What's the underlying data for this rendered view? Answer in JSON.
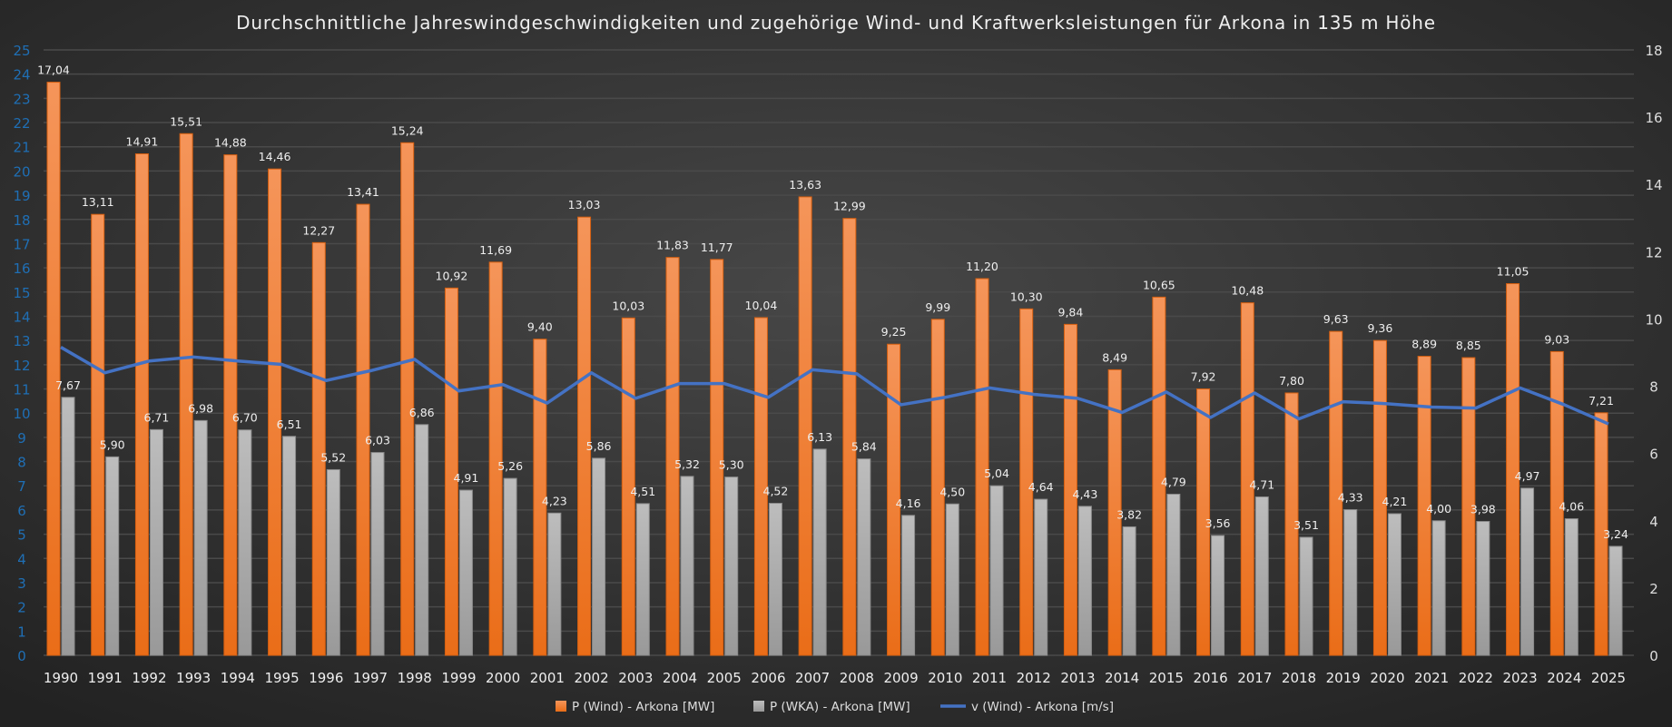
{
  "chart_data": {
    "type": "bar",
    "title": "Durchschnittliche Jahreswindgeschwindigkeiten und zugehörige Wind- und Kraftwerksleistungen für Arkona in 135 m Höhe",
    "categories": [
      "1990",
      "1991",
      "1992",
      "1993",
      "1994",
      "1995",
      "1996",
      "1997",
      "1998",
      "1999",
      "2000",
      "2001",
      "2002",
      "2003",
      "2004",
      "2005",
      "2006",
      "2007",
      "2008",
      "2009",
      "2010",
      "2011",
      "2012",
      "2013",
      "2014",
      "2015",
      "2016",
      "2017",
      "2018",
      "2019",
      "2020",
      "2021",
      "2022",
      "2023",
      "2024",
      "2025"
    ],
    "series": [
      {
        "name": "P (Wind) - Arkona [MW]",
        "type": "bar",
        "color": "#ed7d31",
        "values": [
          17.04,
          13.11,
          14.91,
          15.51,
          14.88,
          14.46,
          12.27,
          13.41,
          15.24,
          10.92,
          11.69,
          9.4,
          13.03,
          10.03,
          11.83,
          11.77,
          10.04,
          13.63,
          12.99,
          9.25,
          9.99,
          11.2,
          10.3,
          9.84,
          8.49,
          10.65,
          7.92,
          10.48,
          7.8,
          9.63,
          9.36,
          8.89,
          8.85,
          11.05,
          9.03,
          7.21
        ],
        "labels": [
          "17,04",
          "13,11",
          "14,91",
          "15,51",
          "14,88",
          "14,46",
          "12,27",
          "13,41",
          "15,24",
          "10,92",
          "11,69",
          "9,40",
          "13,03",
          "10,03",
          "11,83",
          "11,77",
          "10,04",
          "13,63",
          "12,99",
          "9,25",
          "9,99",
          "11,20",
          "10,30",
          "9,84",
          "8,49",
          "10,65",
          "7,92",
          "10,48",
          "7,80",
          "9,63",
          "9,36",
          "8,89",
          "8,85",
          "11,05",
          "9,03",
          "7,21"
        ]
      },
      {
        "name": "P (WKA) - Arkona [MW]",
        "type": "bar",
        "color": "#a5a5a5",
        "values": [
          7.67,
          5.9,
          6.71,
          6.98,
          6.7,
          6.51,
          5.52,
          6.03,
          6.86,
          4.91,
          5.26,
          4.23,
          5.86,
          4.51,
          5.32,
          5.3,
          4.52,
          6.13,
          5.84,
          4.16,
          4.5,
          5.04,
          4.64,
          4.43,
          3.82,
          4.79,
          3.56,
          4.71,
          3.51,
          4.33,
          4.21,
          4.0,
          3.98,
          4.97,
          4.06,
          3.24
        ],
        "labels": [
          "7,67",
          "5,90",
          "6,71",
          "6,98",
          "6,70",
          "6,51",
          "5,52",
          "6,03",
          "6,86",
          "4,91",
          "5,26",
          "4,23",
          "5,86",
          "4,51",
          "5,32",
          "5,30",
          "4,52",
          "6,13",
          "5,84",
          "4,16",
          "4,50",
          "5,04",
          "4,64",
          "4,43",
          "3,82",
          "4,79",
          "3,56",
          "4,71",
          "3,51",
          "4,33",
          "4,21",
          "4,00",
          "3,98",
          "4,97",
          "4,06",
          "3,24"
        ]
      },
      {
        "name": "v (Wind) - Arkona [m/s]",
        "type": "line",
        "color": "#4472c4",
        "values": [
          9.16,
          8.4,
          8.75,
          8.87,
          8.75,
          8.65,
          8.17,
          8.46,
          8.8,
          7.86,
          8.05,
          7.5,
          8.4,
          7.64,
          8.08,
          8.08,
          7.67,
          8.49,
          8.37,
          7.45,
          7.67,
          7.95,
          7.76,
          7.64,
          7.22,
          7.83,
          7.07,
          7.8,
          7.03,
          7.54,
          7.48,
          7.38,
          7.35,
          7.95,
          7.45,
          6.88
        ]
      }
    ],
    "y_left": {
      "ylim": [
        0,
        25
      ],
      "ticks": [
        "0",
        "1",
        "2",
        "3",
        "4",
        "5",
        "6",
        "7",
        "8",
        "9",
        "10",
        "11",
        "12",
        "13",
        "14",
        "15",
        "16",
        "17",
        "18",
        "19",
        "20",
        "21",
        "22",
        "23",
        "24",
        "25"
      ],
      "color": "#1f6fb5"
    },
    "y_right": {
      "ylim": [
        0,
        18
      ],
      "ticks": [
        "0",
        "2",
        "4",
        "6",
        "8",
        "10",
        "12",
        "14",
        "16",
        "18"
      ]
    },
    "grid": true,
    "legend": "bottom-center"
  }
}
